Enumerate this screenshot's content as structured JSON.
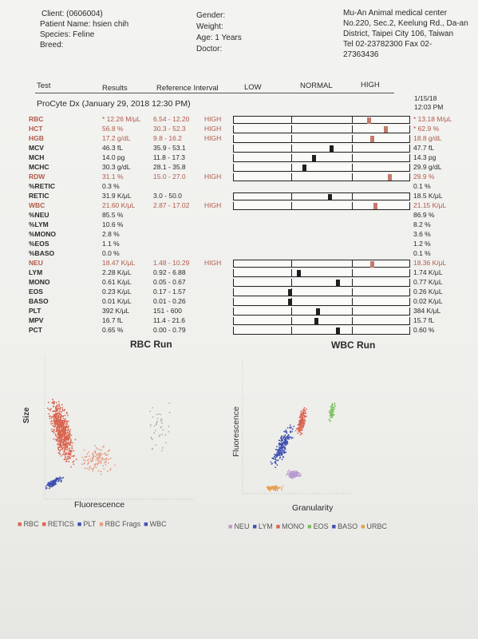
{
  "header": {
    "client": "Client: (0606004)",
    "patient": "Patient Name: hsien chih",
    "species": "Species: Feline",
    "breed": "Breed:",
    "gender": "Gender:",
    "weight": "Weight:",
    "age": "Age: 1 Years",
    "doctor": "Doctor:",
    "clinic_name": "Mu-An Animal medical center",
    "clinic_addr1": "No.220, Sec.2, Keelung Rd., Da-an",
    "clinic_addr2": "District, Taipei City 106, Taiwan",
    "clinic_tel": "Tel 02-23782300  Fax 02-",
    "clinic_fax2": "27363436"
  },
  "table_head": {
    "test": "Test",
    "results": "Results",
    "ref": "Reference Interval",
    "low": "LOW",
    "normal": "NORMAL",
    "high": "HIGH"
  },
  "run1": {
    "title": "ProCyte Dx (January 29, 2018 12:30 PM)",
    "prev_date": "1/15/18",
    "prev_time": "12:03 PM"
  },
  "rows": [
    {
      "test": "RBC",
      "result": "* 12.26 M/μL",
      "ref": "6.54 - 12.20",
      "flag": "HIGH",
      "prev": "* 13.18 M/μL",
      "level": 0.78,
      "red": true,
      "bar": true
    },
    {
      "test": "HCT",
      "result": "56.8 %",
      "ref": "30.3 - 52.3",
      "flag": "HIGH",
      "prev": "* 62.9 %",
      "level": 0.88,
      "red": true,
      "bar": true
    },
    {
      "test": "HGB",
      "result": "17.2 g/dL",
      "ref": "9.8 - 16.2",
      "flag": "HIGH",
      "prev": "18.8 g/dL",
      "level": 0.8,
      "red": true,
      "bar": true
    },
    {
      "test": "MCV",
      "result": "46.3 fL",
      "ref": "35.9 - 53.1",
      "flag": "",
      "prev": "47.7 fL",
      "level": 0.56,
      "red": false,
      "bar": true
    },
    {
      "test": "MCH",
      "result": "14.0 pg",
      "ref": "11.8 - 17.3",
      "flag": "",
      "prev": "14.3 pg",
      "level": 0.46,
      "red": false,
      "bar": true
    },
    {
      "test": "MCHC",
      "result": "30.3 g/dL",
      "ref": "28.1 - 35.8",
      "flag": "",
      "prev": "29.9 g/dL",
      "level": 0.4,
      "red": false,
      "bar": true
    },
    {
      "test": "RDW",
      "result": "31.1 %",
      "ref": "15.0 - 27.0",
      "flag": "HIGH",
      "prev": "29.9 %",
      "level": 0.9,
      "red": true,
      "bar": true
    },
    {
      "test": "%RETIC",
      "result": "0.3 %",
      "ref": "",
      "flag": "",
      "prev": "0.1 %",
      "level": null,
      "red": false,
      "bar": false
    },
    {
      "test": "RETIC",
      "result": "31.9 K/μL",
      "ref": "3.0 - 50.0",
      "flag": "",
      "prev": "18.5 K/μL",
      "level": 0.55,
      "red": false,
      "bar": true
    },
    {
      "test": "WBC",
      "result": "21.60 K/μL",
      "ref": "2.87 - 17.02",
      "flag": "HIGH",
      "prev": "21.15 K/μL",
      "level": 0.82,
      "red": true,
      "bar": true
    },
    {
      "test": "%NEU",
      "result": "85.5 %",
      "ref": "",
      "flag": "",
      "prev": "86.9 %",
      "level": null,
      "red": false,
      "bar": false
    },
    {
      "test": "%LYM",
      "result": "10.6 %",
      "ref": "",
      "flag": "",
      "prev": "8.2 %",
      "level": null,
      "red": false,
      "bar": false
    },
    {
      "test": "%MONO",
      "result": "2.8 %",
      "ref": "",
      "flag": "",
      "prev": "3.6 %",
      "level": null,
      "red": false,
      "bar": false
    },
    {
      "test": "%EOS",
      "result": "1.1 %",
      "ref": "",
      "flag": "",
      "prev": "1.2 %",
      "level": null,
      "red": false,
      "bar": false
    },
    {
      "test": "%BASO",
      "result": "0.0 %",
      "ref": "",
      "flag": "",
      "prev": "0.1 %",
      "level": null,
      "red": false,
      "bar": false
    },
    {
      "test": "NEU",
      "result": "18.47 K/μL",
      "ref": "1.48 - 10.29",
      "flag": "HIGH",
      "prev": "18.36 K/μL",
      "level": 0.8,
      "red": true,
      "bar": true
    },
    {
      "test": "LYM",
      "result": "2.28 K/μL",
      "ref": "0.92 - 6.88",
      "flag": "",
      "prev": "1.74 K/μL",
      "level": 0.37,
      "red": false,
      "bar": true
    },
    {
      "test": "MONO",
      "result": "0.61 K/μL",
      "ref": "0.05 - 0.67",
      "flag": "",
      "prev": "0.77 K/μL",
      "level": 0.6,
      "red": false,
      "bar": true
    },
    {
      "test": "EOS",
      "result": "0.23 K/μL",
      "ref": "0.17 - 1.57",
      "flag": "",
      "prev": "0.26 K/μL",
      "level": 0.32,
      "red": false,
      "bar": true
    },
    {
      "test": "BASO",
      "result": "0.01 K/μL",
      "ref": "0.01 - 0.26",
      "flag": "",
      "prev": "0.02 K/μL",
      "level": 0.32,
      "red": false,
      "bar": true
    },
    {
      "test": "PLT",
      "result": "392 K/μL",
      "ref": "151 - 600",
      "flag": "",
      "prev": "384 K/μL",
      "level": 0.48,
      "red": false,
      "bar": true
    },
    {
      "test": "MPV",
      "result": "16.7 fL",
      "ref": "11.4 - 21.6",
      "flag": "",
      "prev": "15.7 fL",
      "level": 0.47,
      "red": false,
      "bar": true
    },
    {
      "test": "PCT",
      "result": "0.65 %",
      "ref": "0.00 - 0.79",
      "flag": "",
      "prev": "0.60 %",
      "level": 0.6,
      "red": false,
      "bar": true
    }
  ],
  "colors": {
    "high_marker": "#c47a6b",
    "normal_marker": "#1f1f1f",
    "red_text": "#b05a4a"
  },
  "rbc_run": {
    "title": "RBC Run",
    "ylabel": "Size",
    "xlabel": "Fluorescence",
    "legend": [
      {
        "label": "RBC",
        "color": "#d9644f"
      },
      {
        "label": "RETICS",
        "color": "#d9644f"
      },
      {
        "label": "PLT",
        "color": "#3f4fb0"
      },
      {
        "label": "RBC Frags",
        "color": "#e79a80"
      },
      {
        "label": "WBC",
        "color": "#3f4fb0"
      }
    ]
  },
  "wbc_run": {
    "title": "WBC Run",
    "ylabel": "Fluorescence",
    "xlabel": "Granularity",
    "legend": [
      {
        "label": "NEU",
        "color": "#b89ad0"
      },
      {
        "label": "LYM",
        "color": "#3f4fb0"
      },
      {
        "label": "MONO",
        "color": "#d9644f"
      },
      {
        "label": "EOS",
        "color": "#7cbf5e"
      },
      {
        "label": "BASO",
        "color": "#3f4fb0"
      },
      {
        "label": "URBC",
        "color": "#e6a04f"
      }
    ]
  }
}
